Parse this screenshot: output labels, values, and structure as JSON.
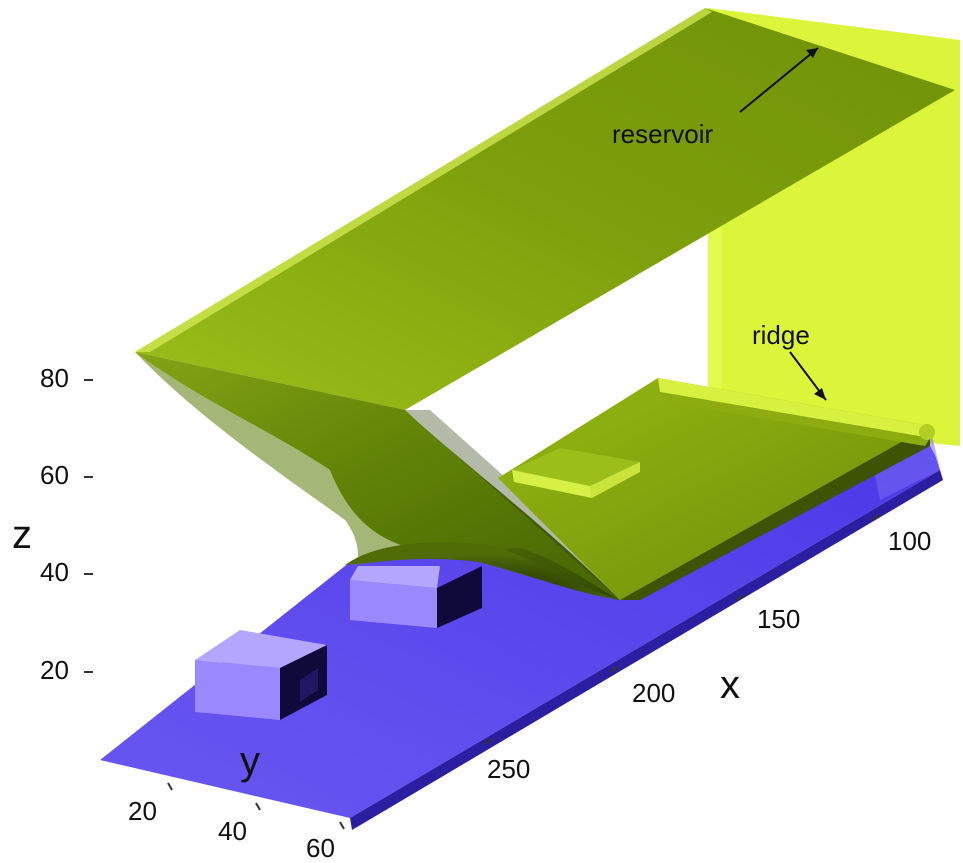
{
  "axes": {
    "x": {
      "label": "x",
      "ticks": [
        "100",
        "150",
        "200",
        "250"
      ]
    },
    "y": {
      "label": "y",
      "ticks": [
        "20",
        "40",
        "60"
      ]
    },
    "z": {
      "label": "z",
      "ticks": [
        "80",
        "60",
        "40",
        "20"
      ]
    }
  },
  "annotations": {
    "reservoir": "reservoir",
    "ridge": "ridge"
  },
  "colors": {
    "floor": "#5a48f0",
    "floor_side": "#8a7cf6",
    "obstacle_top": "#9d8cff",
    "obstacle_dark": "#100a3a",
    "surface_light": "#c6e03a",
    "surface_mid": "#8cb010",
    "surface_dark": "#3f5a05",
    "wall": "#dcf53a"
  }
}
